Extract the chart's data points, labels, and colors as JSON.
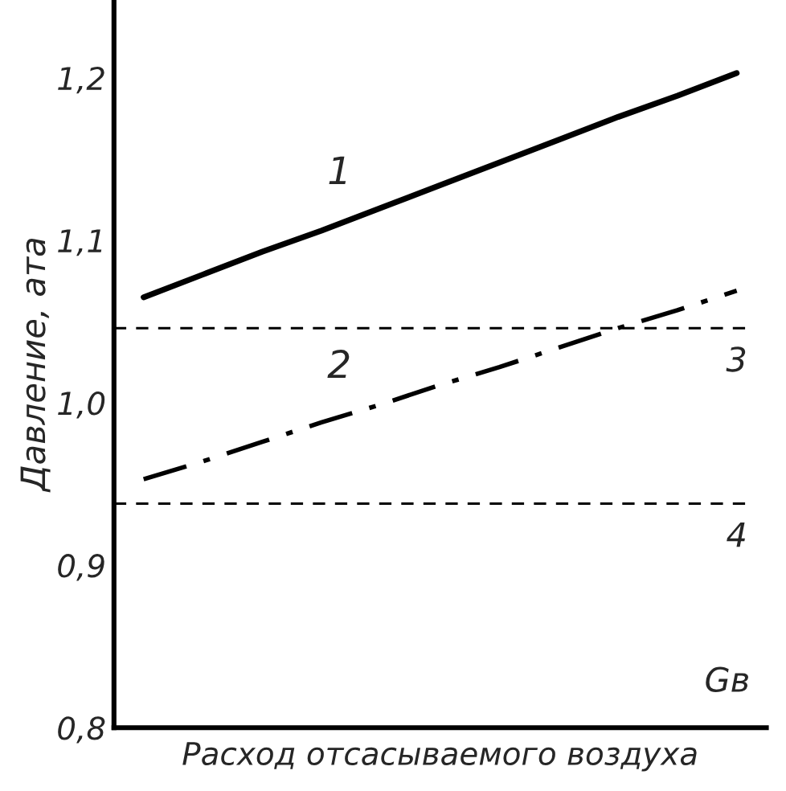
{
  "chart_data": {
    "type": "line",
    "ylabel": "Давление, ата",
    "xlabel": "Расход отсасываемого воздуха",
    "categories": [
      null,
      null,
      null,
      null,
      null,
      null,
      null,
      null,
      null,
      null,
      null
    ],
    "series": [
      {
        "name": "1",
        "color": "#000000",
        "values": [
          1.065,
          1.079,
          1.093,
          1.106,
          1.12,
          1.134,
          1.148,
          1.162,
          1.176,
          1.189,
          1.203
        ],
        "line_style": "solid"
      },
      {
        "name": "2",
        "color": "#000000",
        "values": [
          0.953,
          0.964,
          0.976,
          0.988,
          0.999,
          1.011,
          1.022,
          1.034,
          1.046,
          1.057,
          1.069
        ],
        "line_style": "dashdot"
      }
    ],
    "ref_lines": [
      {
        "axis": "y",
        "value": 1.046,
        "color": "#000000",
        "line_style": "dashed"
      },
      {
        "axis": "y",
        "value": 0.938,
        "color": "#000000",
        "line_style": "dashed"
      }
    ],
    "annotations": [
      {
        "text": "3",
        "y": 1.046
      },
      {
        "text": "4",
        "y": 0.938
      },
      "Gв"
    ],
    "ylim": [
      0.8,
      1.248
    ],
    "yticks": [
      {
        "value": 0.8,
        "label": "0,8"
      },
      {
        "value": 0.9,
        "label": "0,9"
      },
      {
        "value": 1.0,
        "label": "1,0"
      },
      {
        "value": 1.1,
        "label": "1,1"
      },
      {
        "value": 1.2,
        "label": "1,2"
      }
    ],
    "tick_labels": "y",
    "grid": false,
    "legend": false,
    "marker": "none"
  }
}
